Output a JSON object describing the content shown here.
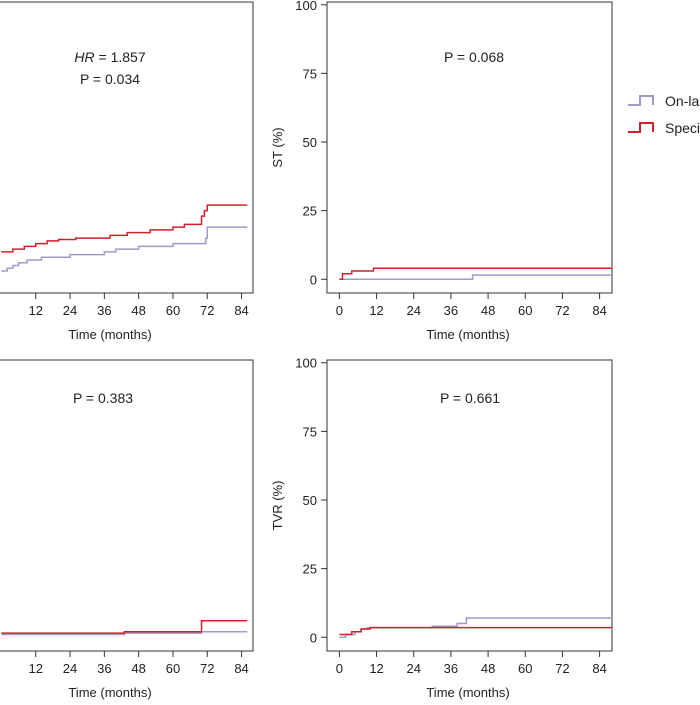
{
  "colors": {
    "series_a": "#9c9cc8",
    "series_b": "#d0202a",
    "axis": "#333333"
  },
  "legend": {
    "entries": [
      {
        "label": "On-la",
        "color": "#9c9cc8"
      },
      {
        "label": "Speci",
        "color": "#d0202a"
      }
    ]
  },
  "chart_data": [
    {
      "type": "line",
      "panel": "top-left",
      "xlabel": "Time (months)",
      "ylabel": "",
      "x_ticks": [
        "12",
        "24",
        "36",
        "48",
        "60",
        "72",
        "84"
      ],
      "y_ticks": [],
      "annotation_lines": [
        {
          "italic": "HR",
          "text": " = 1.857"
        },
        {
          "italic": "",
          "text": "P = 0.034"
        }
      ],
      "step": true,
      "series": [
        {
          "color": "#9c9cc8",
          "x": [
            0,
            2,
            4,
            6,
            9,
            14,
            24,
            36,
            40,
            48,
            60,
            70,
            71.5,
            72,
            86
          ],
          "y": [
            3,
            4,
            5,
            6,
            7,
            8,
            9,
            10,
            11,
            12,
            13,
            13,
            15,
            19,
            19
          ]
        },
        {
          "color": "#d0202a",
          "x": [
            0,
            2,
            4,
            8,
            12,
            16,
            20,
            26,
            38,
            44,
            52,
            60,
            64,
            70,
            71,
            72,
            86
          ],
          "y": [
            10,
            10,
            11,
            12,
            13,
            14,
            14.5,
            15,
            16,
            17,
            18,
            19,
            20,
            23,
            25,
            27,
            27
          ]
        }
      ]
    },
    {
      "type": "line",
      "panel": "top-right",
      "xlabel": "Time (months)",
      "ylabel": "ST (%)",
      "xlim": [
        -4,
        88
      ],
      "ylim": [
        -5,
        101
      ],
      "x_ticks": [
        0,
        12,
        24,
        36,
        48,
        60,
        72,
        84
      ],
      "y_ticks": [
        0,
        25,
        50,
        75,
        100
      ],
      "annotation_lines": [
        {
          "italic": "",
          "text": "P = 0.068"
        }
      ],
      "step": true,
      "series": [
        {
          "color": "#9c9cc8",
          "x": [
            0,
            43,
            88
          ],
          "y": [
            0,
            1.5,
            1.5
          ]
        },
        {
          "color": "#d0202a",
          "x": [
            0,
            1,
            4,
            11,
            88
          ],
          "y": [
            0,
            2,
            3,
            4,
            4
          ]
        }
      ]
    },
    {
      "type": "line",
      "panel": "bottom-left",
      "xlabel": "Time (months)",
      "ylabel": "",
      "x_ticks": [
        "12",
        "24",
        "36",
        "48",
        "60",
        "72",
        "84"
      ],
      "y_ticks": [],
      "annotation_lines": [
        {
          "italic": "",
          "text": "P = 0.383"
        }
      ],
      "step": true,
      "series": [
        {
          "color": "#9c9cc8",
          "x": [
            0,
            43,
            70,
            86
          ],
          "y": [
            1,
            1.5,
            2,
            2
          ]
        },
        {
          "color": "#d0202a",
          "x": [
            0,
            43,
            70,
            86
          ],
          "y": [
            1.5,
            2,
            6,
            6
          ]
        }
      ]
    },
    {
      "type": "line",
      "panel": "bottom-right",
      "xlabel": "Time (months)",
      "ylabel": "TVR (%)",
      "xlim": [
        -4,
        88
      ],
      "ylim": [
        -5,
        101
      ],
      "x_ticks": [
        0,
        12,
        24,
        36,
        48,
        60,
        72,
        84
      ],
      "y_ticks": [
        0,
        25,
        50,
        75,
        100
      ],
      "annotation_lines": [
        {
          "italic": "",
          "text": "P = 0.661"
        }
      ],
      "step": true,
      "series": [
        {
          "color": "#9c9cc8",
          "x": [
            0,
            2,
            5,
            7,
            9,
            30,
            38,
            41,
            88
          ],
          "y": [
            0,
            1,
            2,
            3,
            3.5,
            4,
            5,
            7,
            7
          ]
        },
        {
          "color": "#d0202a",
          "x": [
            0,
            4,
            7,
            10,
            88
          ],
          "y": [
            1,
            2,
            3,
            3.5,
            3.5
          ]
        }
      ]
    }
  ]
}
